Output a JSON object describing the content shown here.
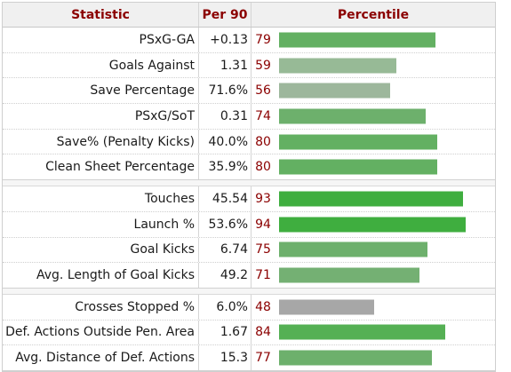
{
  "headers": {
    "statistic": "Statistic",
    "per90": "Per 90",
    "percentile": "Percentile"
  },
  "groups": [
    [
      {
        "stat": "PSxG-GA",
        "per90": "+0.13",
        "percentile": 79,
        "color": "#63b062"
      },
      {
        "stat": "Goals Against",
        "per90": "1.31",
        "percentile": 59,
        "color": "#97ba96"
      },
      {
        "stat": "Save Percentage",
        "per90": "71.6%",
        "percentile": 56,
        "color": "#9db79c"
      },
      {
        "stat": "PSxG/SoT",
        "per90": "0.31",
        "percentile": 74,
        "color": "#6db06c"
      },
      {
        "stat": "Save% (Penalty Kicks)",
        "per90": "40.0%",
        "percentile": 80,
        "color": "#63b062"
      },
      {
        "stat": "Clean Sheet Percentage",
        "per90": "35.9%",
        "percentile": 80,
        "color": "#63b062"
      }
    ],
    [
      {
        "stat": "Touches",
        "per90": "45.54",
        "percentile": 93,
        "color": "#3fae3f"
      },
      {
        "stat": "Launch %",
        "per90": "53.6%",
        "percentile": 94,
        "color": "#3fae3f"
      },
      {
        "stat": "Goal Kicks",
        "per90": "6.74",
        "percentile": 75,
        "color": "#6db06c"
      },
      {
        "stat": "Avg. Length of Goal Kicks",
        "per90": "49.2",
        "percentile": 71,
        "color": "#74b073"
      }
    ],
    [
      {
        "stat": "Crosses Stopped %",
        "per90": "6.0%",
        "percentile": 48,
        "color": "#a7a7a7"
      },
      {
        "stat": "Def. Actions Outside Pen. Area",
        "per90": "1.67",
        "percentile": 84,
        "color": "#55b054"
      },
      {
        "stat": "Avg. Distance of Def. Actions",
        "per90": "15.3",
        "percentile": 77,
        "color": "#6db06c"
      }
    ]
  ]
}
